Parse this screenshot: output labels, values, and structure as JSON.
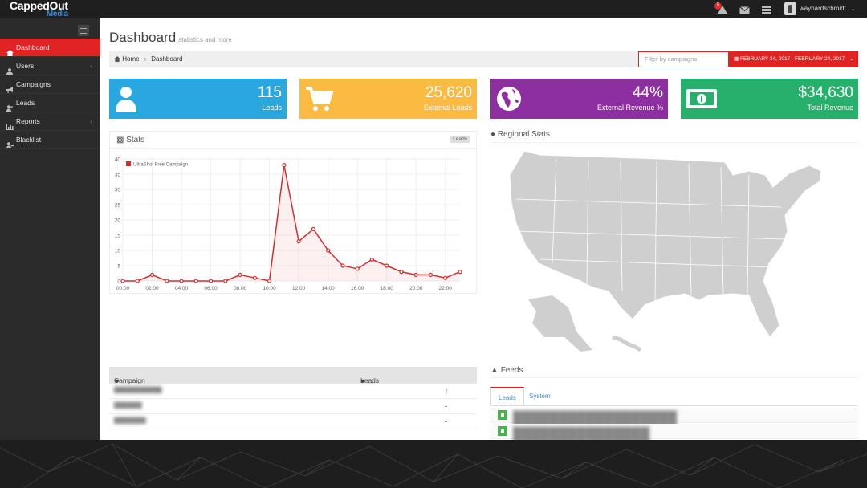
{
  "header": {
    "logo_main": "CappedOut",
    "logo_sub": "Media",
    "notification_count": "5",
    "username": "waynardschmidt"
  },
  "sidebar": {
    "items": [
      {
        "label": "Dashboard",
        "icon": "home-icon"
      },
      {
        "label": "Users",
        "icon": "user-icon"
      },
      {
        "label": "Campaigns",
        "icon": "bullhorn-icon"
      },
      {
        "label": "Leads",
        "icon": "users-icon"
      },
      {
        "label": "Reports",
        "icon": "bar-chart-icon"
      },
      {
        "label": "Blacklist",
        "icon": "user-block-icon"
      }
    ]
  },
  "page": {
    "title": "Dashboard",
    "subtitle": "statistics and more",
    "breadcrumb_home": "Home",
    "breadcrumb_current": "Dashboard",
    "filter_placeholder": "Filter by campaigns",
    "date_range": "FEBRUARY 24, 2017 - FEBRUARY 24, 2017"
  },
  "stat_boxes": [
    {
      "value": "115",
      "label": "Leads",
      "color": "#29a8e0",
      "icon": "user-icon"
    },
    {
      "value": "25,620",
      "label": "External Leads",
      "color": "#fbbb42",
      "icon": "cart-icon"
    },
    {
      "value": "44%",
      "label": "External Revenue %",
      "color": "#8e2fa1",
      "icon": "globe-icon"
    },
    {
      "value": "$34,630",
      "label": "Total Revenue",
      "color": "#27b06b",
      "icon": "money-icon"
    }
  ],
  "stats_panel": {
    "title": "Stats",
    "tag": "Leads"
  },
  "chart_data": {
    "type": "line",
    "x": [
      "00:00",
      "01:00",
      "02:00",
      "03:00",
      "04:00",
      "05:00",
      "06:00",
      "07:00",
      "08:00",
      "09:00",
      "10:00",
      "11:00",
      "12:00",
      "13:00",
      "14:00",
      "15:00",
      "16:00",
      "17:00",
      "18:00",
      "19:00",
      "20:00",
      "21:00",
      "22:00",
      "23:00"
    ],
    "x_tick_labels": [
      "00:00",
      "02:00",
      "04:00",
      "06:00",
      "08:00",
      "10:00",
      "12:00",
      "14:00",
      "16:00",
      "18:00",
      "20:00",
      "22:00"
    ],
    "series": [
      {
        "name": "UltraShot Free Campaign",
        "values": [
          0,
          0,
          2,
          0,
          0,
          0,
          0,
          0,
          2,
          1,
          0,
          38,
          13,
          17,
          10,
          5,
          4,
          7,
          5,
          3,
          2,
          2,
          1,
          3
        ]
      }
    ],
    "ylim": [
      0,
      40
    ],
    "y_ticks": [
      0,
      5,
      10,
      15,
      20,
      25,
      30,
      35,
      40
    ],
    "grid": true,
    "legend": "top-left",
    "color": "#d32f2f"
  },
  "regional": {
    "title": "Regional Stats"
  },
  "campaign_table": {
    "col_campaign": "Campaign",
    "col_leads": "Leads"
  },
  "feeds": {
    "title": "Feeds",
    "tab_leads": "Leads",
    "tab_system": "System"
  },
  "colors": {
    "accent": "#e02424",
    "link": "#3c8dd9"
  }
}
